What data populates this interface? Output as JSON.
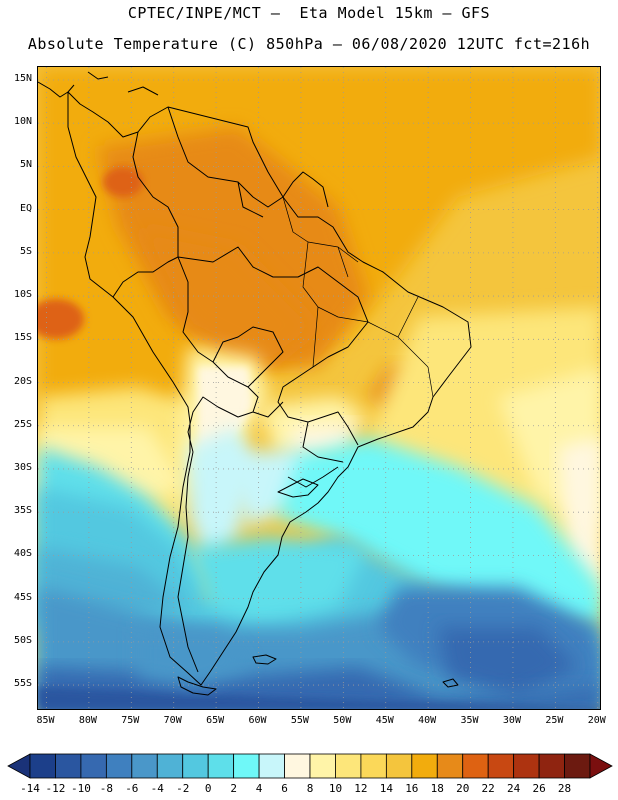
{
  "header": {
    "line1": "CPTEC/INPE/MCT –  Eta Model 15km – GFS",
    "line2": "Absolute Temperature (C) 850hPa – 06/08/2020 12UTC fct=216h"
  },
  "map": {
    "region": "South America",
    "lat_labels": [
      "15N",
      "10N",
      "5N",
      "EQ",
      "5S",
      "10S",
      "15S",
      "20S",
      "25S",
      "30S",
      "35S",
      "40S",
      "45S",
      "50S",
      "55S"
    ],
    "lat_values": [
      15,
      10,
      5,
      0,
      -5,
      -10,
      -15,
      -20,
      -25,
      -30,
      -35,
      -40,
      -45,
      -50,
      -55
    ],
    "lon_labels": [
      "85W",
      "80W",
      "75W",
      "70W",
      "65W",
      "60W",
      "55W",
      "50W",
      "45W",
      "40W",
      "35W",
      "30W",
      "25W",
      "20W"
    ],
    "lon_values": [
      -85,
      -80,
      -75,
      -70,
      -65,
      -60,
      -55,
      -50,
      -45,
      -40,
      -35,
      -30,
      -25,
      -20
    ],
    "lon_range": [
      -86,
      -19.5
    ],
    "lat_range": [
      16.5,
      -58
    ]
  },
  "colorbar": {
    "labels": [
      "-14",
      "-12",
      "-10",
      "-8",
      "-6",
      "-4",
      "-2",
      "0",
      "2",
      "4",
      "6",
      "8",
      "10",
      "12",
      "14",
      "16",
      "18",
      "20",
      "22",
      "24",
      "26",
      "28"
    ],
    "colors": [
      "#1c3f8a",
      "#2a56a0",
      "#3669b0",
      "#3f80bf",
      "#4a97c9",
      "#4fb2d6",
      "#53c8e0",
      "#5edfea",
      "#6ff8f8",
      "#c8f6fa",
      "#fff7e0",
      "#fff4a8",
      "#fde67a",
      "#fbd859",
      "#f4c53d",
      "#f2ac0d",
      "#e78a19",
      "#de6212",
      "#c84812",
      "#ad3310",
      "#8f2410",
      "#6c1a10"
    ],
    "under_color": "#1a3278",
    "over_color": "#7a0f0f"
  }
}
